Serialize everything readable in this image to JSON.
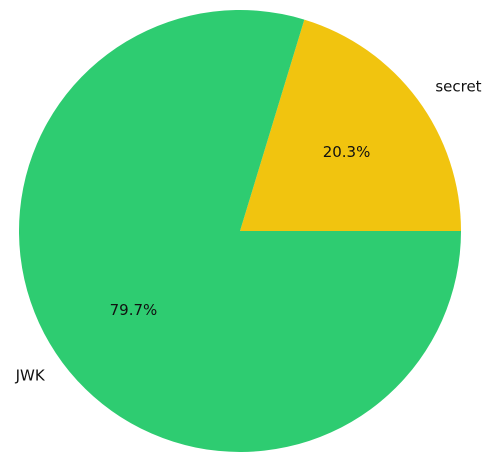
{
  "chart_data": {
    "type": "pie",
    "categories": [
      "secret",
      "JWK"
    ],
    "values": [
      20.3,
      79.7
    ],
    "value_labels": [
      "20.3%",
      "79.7%"
    ],
    "colors": [
      "#f1c40f",
      "#2ecc71"
    ],
    "start_angle_deg": 0,
    "direction": "counterclockwise",
    "title": "",
    "legend": "none"
  }
}
